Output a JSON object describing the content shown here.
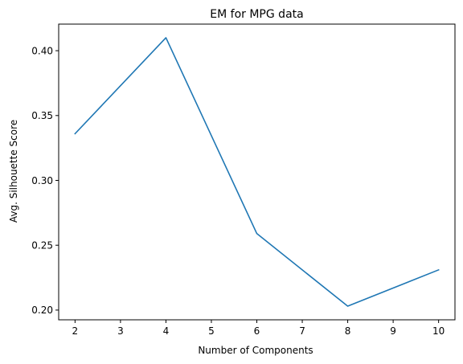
{
  "chart_data": {
    "type": "line",
    "title": "EM for MPG data",
    "xlabel": "Number of Components",
    "ylabel": "Avg. Silhouette Score",
    "xlim": [
      1.64,
      10.36
    ],
    "ylim": [
      0.1925,
      0.4205
    ],
    "xticks": [
      2,
      3,
      4,
      5,
      6,
      7,
      8,
      9,
      10
    ],
    "yticks": [
      0.2,
      0.25,
      0.3,
      0.35,
      0.4
    ],
    "ytick_labels": [
      "0.20",
      "0.25",
      "0.30",
      "0.35",
      "0.40"
    ],
    "grid": false,
    "series": [
      {
        "color": "#1f77b4",
        "x": [
          2,
          4,
          6,
          8,
          10
        ],
        "y": [
          0.336,
          0.41,
          0.259,
          0.203,
          0.231
        ]
      }
    ]
  }
}
